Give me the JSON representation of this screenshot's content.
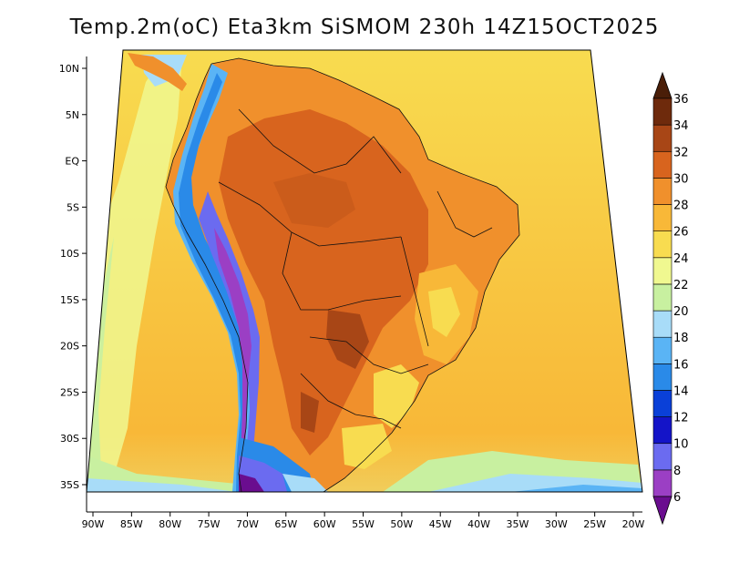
{
  "title": "Temp.2m(oC) Eta3km SiSMOM 230h 14Z15OCT2025",
  "map": {
    "lat_ticks": [
      {
        "lat": 10,
        "label": "10N"
      },
      {
        "lat": 5,
        "label": "5N"
      },
      {
        "lat": 0,
        "label": "EQ"
      },
      {
        "lat": -5,
        "label": "5S"
      },
      {
        "lat": -10,
        "label": "10S"
      },
      {
        "lat": -15,
        "label": "15S"
      },
      {
        "lat": -20,
        "label": "20S"
      },
      {
        "lat": -25,
        "label": "25S"
      },
      {
        "lat": -30,
        "label": "30S"
      },
      {
        "lat": -35,
        "label": "35S"
      }
    ],
    "lon_ticks": [
      {
        "lon": -90,
        "label": "90W"
      },
      {
        "lon": -85,
        "label": "85W"
      },
      {
        "lon": -80,
        "label": "80W"
      },
      {
        "lon": -75,
        "label": "75W"
      },
      {
        "lon": -70,
        "label": "70W"
      },
      {
        "lon": -65,
        "label": "65W"
      },
      {
        "lon": -60,
        "label": "60W"
      },
      {
        "lon": -55,
        "label": "55W"
      },
      {
        "lon": -50,
        "label": "50W"
      },
      {
        "lon": -45,
        "label": "45W"
      },
      {
        "lon": -40,
        "label": "40W"
      },
      {
        "lon": -35,
        "label": "35W"
      },
      {
        "lon": -30,
        "label": "30W"
      },
      {
        "lon": -25,
        "label": "25W"
      },
      {
        "lon": -20,
        "label": "20W"
      }
    ]
  },
  "colorbar": {
    "labels": [
      "6",
      "8",
      "10",
      "12",
      "14",
      "16",
      "18",
      "20",
      "22",
      "24",
      "26",
      "28",
      "30",
      "32",
      "34",
      "36"
    ],
    "colors": [
      "#6a0d8f",
      "#9b3fc4",
      "#6b6bf0",
      "#1414c8",
      "#0a40d8",
      "#2a8ae8",
      "#5ab4f5",
      "#a8dcf8",
      "#c8f0a0",
      "#f0f890",
      "#f8dc50",
      "#f8b838",
      "#f0902c",
      "#d8641e",
      "#a84616",
      "#6e2a0c"
    ],
    "under_color": "#4a0a66",
    "over_color": "#4a1e08"
  }
}
